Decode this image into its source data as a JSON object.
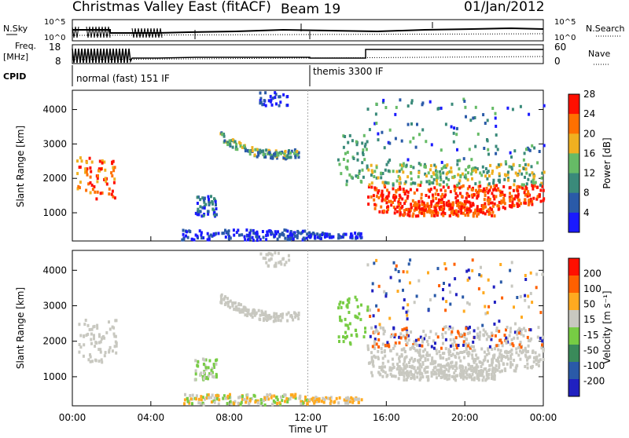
{
  "header": {
    "station": "Christmas Valley East (fitACF)",
    "beam": "Beam 19",
    "date": "01/Jan/2012"
  },
  "status_panels": {
    "nsky_label": "N.Sky",
    "nsky_ticks": [
      "10^5",
      "10^0"
    ],
    "nsearch_label": "N.Search",
    "nsearch_ticks": [
      "10^5",
      "10^0"
    ],
    "freq_label_1": "Freq.",
    "freq_label_2": "[MHz]",
    "freq_ticks": [
      "18",
      "8"
    ],
    "nave_label": "Nave",
    "nave_ticks": [
      "60",
      "0"
    ],
    "cpid_label": "CPID",
    "cpid_modes": [
      "normal (fast) 151 IF",
      "themis 3300 IF"
    ],
    "cpid_mode_start_times": [
      "00:00",
      "12:00"
    ]
  },
  "chart_data": [
    {
      "type": "heatmap",
      "name": "Power",
      "ylabel": "Slant Range [km]",
      "ylim": [
        180,
        4560
      ],
      "yticks": [
        "1000",
        "2000",
        "3000",
        "4000"
      ],
      "xlim": [
        "00:00",
        "24:00"
      ],
      "colorbar": {
        "label": "Power [dB]",
        "ticks": [
          "4",
          "8",
          "12",
          "16",
          "20",
          "24",
          "28"
        ],
        "colors": [
          "#1a1aff",
          "#2a5aa8",
          "#3a8a7a",
          "#66bb66",
          "#f0b020",
          "#ff7000",
          "#ff1000"
        ]
      }
    },
    {
      "type": "heatmap",
      "name": "Velocity",
      "ylabel": "Slant Range [km]",
      "ylim": [
        180,
        4560
      ],
      "yticks": [
        "1000",
        "2000",
        "3000",
        "4000"
      ],
      "xlabel": "Time UT",
      "xticks": [
        "00:00",
        "04:00",
        "08:00",
        "12:00",
        "16:00",
        "20:00",
        "00:00"
      ],
      "colorbar": {
        "label": "Velocity [m s⁻¹]",
        "ticks": [
          "200",
          "100",
          "50",
          "15",
          "-15",
          "-50",
          "-100",
          "-200"
        ],
        "colors": [
          "#2020c0",
          "#2a5aa8",
          "#3a8a5a",
          "#77cc44",
          "#c8c8c0",
          "#ffaa20",
          "#ff6000",
          "#ff1000"
        ]
      }
    }
  ]
}
